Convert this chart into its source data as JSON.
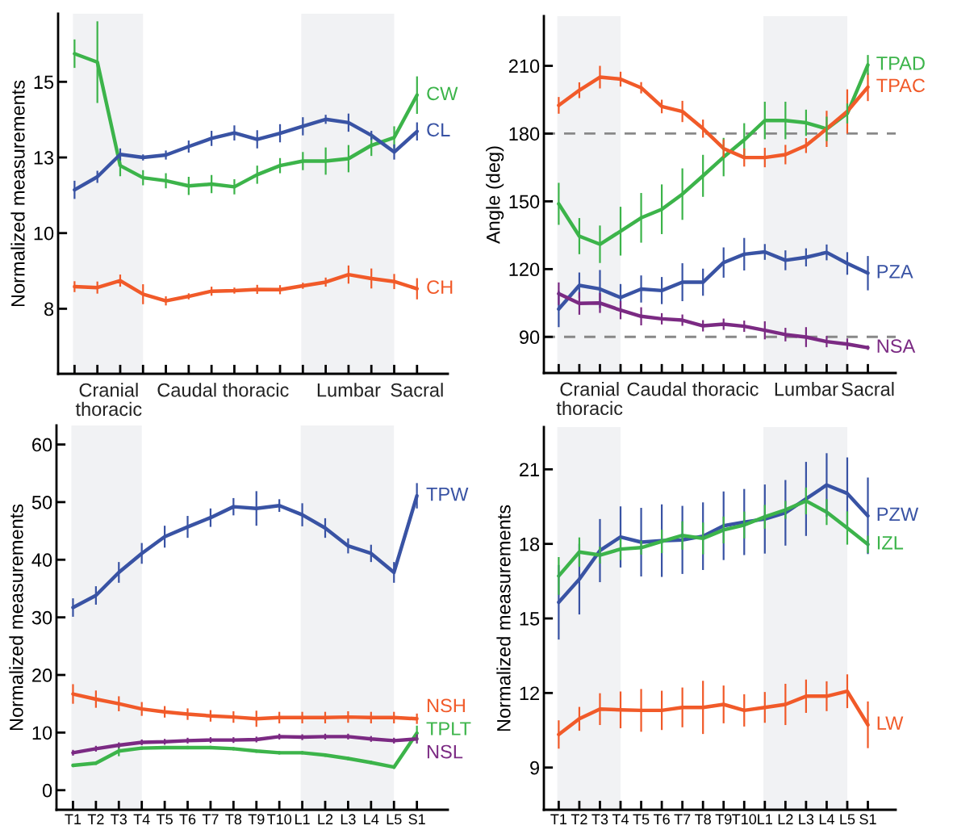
{
  "chart_data": [
    {
      "type": "line",
      "ylabel": "Normalized measurements",
      "tick_labels": "y",
      "categories": [
        "T1",
        "T2",
        "T3",
        "T4",
        "T5",
        "T6",
        "T7",
        "T8",
        "T9",
        "T10",
        "L1",
        "L2",
        "L3",
        "L4",
        "L5",
        "S1"
      ],
      "ylim": [
        5.6,
        17.5
      ],
      "annotations": [
        "Caudal thoracic",
        "Sacral"
      ],
      "yticks": [
        {
          "value": 7.75,
          "label": "8"
        },
        {
          "value": 10.25,
          "label": "10"
        },
        {
          "value": 12.75,
          "label": "13"
        },
        {
          "value": 15.25,
          "label": "15"
        }
      ],
      "bands": [
        {
          "axis": "x",
          "from": "T1",
          "to": "T4",
          "label": "Cranial\nthoracic",
          "color": "#f1f2f4"
        },
        {
          "axis": "x",
          "from": "L1",
          "to": "L5",
          "label": "Lumbar",
          "color": "#f1f2f4"
        }
      ],
      "series": [
        {
          "name": "CW",
          "color": "#3cb44a",
          "values": [
            16.18,
            15.9,
            12.48,
            12.08,
            11.98,
            11.81,
            11.87,
            11.78,
            12.18,
            12.48,
            12.63,
            12.63,
            12.71,
            13.15,
            13.41,
            14.81
          ],
          "errors": [
            0.47,
            1.35,
            0.35,
            0.25,
            0.25,
            0.3,
            0.3,
            0.25,
            0.3,
            0.25,
            0.3,
            0.45,
            0.45,
            0.35,
            0.37,
            0.62
          ]
        },
        {
          "name": "CL",
          "color": "#3953a4",
          "values": [
            11.68,
            12.11,
            12.85,
            12.75,
            12.83,
            13.11,
            13.38,
            13.56,
            13.35,
            13.55,
            13.78,
            14.01,
            13.9,
            13.48,
            12.93,
            13.61
          ],
          "errors": [
            0.3,
            0.2,
            0.2,
            0.1,
            0.15,
            0.2,
            0.25,
            0.25,
            0.3,
            0.3,
            0.3,
            0.15,
            0.3,
            0.15,
            0.25,
            0.3
          ]
        },
        {
          "name": "CH",
          "color": "#f15a29",
          "values": [
            8.48,
            8.45,
            8.68,
            8.23,
            8.01,
            8.16,
            8.33,
            8.35,
            8.39,
            8.38,
            8.51,
            8.63,
            8.88,
            8.75,
            8.65,
            8.41
          ],
          "errors": [
            0.18,
            0.2,
            0.2,
            0.33,
            0.15,
            0.1,
            0.15,
            0.1,
            0.15,
            0.15,
            0.1,
            0.15,
            0.3,
            0.33,
            0.25,
            0.35
          ]
        }
      ]
    },
    {
      "type": "line",
      "ylabel": "Angle (deg)",
      "tick_labels": "y",
      "categories": [
        "T1",
        "T2",
        "T3",
        "T4",
        "T5",
        "T6",
        "T7",
        "T8",
        "T9",
        "T10",
        "L1",
        "L2",
        "L3",
        "L4",
        "L5",
        "S1"
      ],
      "ylim": [
        74,
        232
      ],
      "yticks": [
        90,
        120,
        150,
        180,
        210
      ],
      "annotations": [
        "Caudal thoracic",
        "Sacral"
      ],
      "bands": [
        {
          "axis": "x",
          "from": "T1",
          "to": "T4",
          "label": "Cranial\nthoracic",
          "color": "#f1f2f4"
        },
        {
          "axis": "x",
          "from": "L1",
          "to": "L5",
          "label": "Lumbar",
          "color": "#f1f2f4"
        }
      ],
      "ref_lines": [
        {
          "axis": "y",
          "value": 180,
          "color": "#888888",
          "line_style": "dashed"
        },
        {
          "axis": "y",
          "value": 90,
          "color": "#888888",
          "line_style": "dashed"
        }
      ],
      "series": [
        {
          "name": "TPAD",
          "color": "#3cb44a",
          "values": [
            148.9,
            134.6,
            131.0,
            136.8,
            142.7,
            146.5,
            153.2,
            161.3,
            169.6,
            177.2,
            185.8,
            185.8,
            184.8,
            182.1,
            188.9,
            210.4
          ],
          "errors": [
            9.3,
            8,
            8.3,
            10.8,
            11,
            11,
            11.4,
            9.3,
            8.5,
            7.4,
            8.3,
            8.3,
            5.8,
            5.4,
            4.4,
            4.4
          ]
        },
        {
          "name": "TPAC",
          "color": "#f15a29",
          "values": [
            192.5,
            199.2,
            205.0,
            204.1,
            200.3,
            192.0,
            189.8,
            182.2,
            173.4,
            169.4,
            169.4,
            170.7,
            174.7,
            182.1,
            189.8,
            200.6
          ],
          "errors": [
            3.7,
            3.5,
            5,
            3.3,
            2.5,
            3,
            4.7,
            4,
            4,
            4,
            4.3,
            4.3,
            3.3,
            8,
            9.8,
            6.2
          ]
        },
        {
          "name": "PZA",
          "color": "#3953a4",
          "values": [
            102.3,
            112.8,
            111.2,
            107.4,
            111.2,
            110.5,
            114.2,
            114.2,
            122.9,
            126.6,
            127.6,
            123.9,
            125.2,
            127.4,
            122.5,
            118.2
          ],
          "errors": [
            8,
            5.7,
            8.4,
            6,
            6,
            6,
            8.4,
            6,
            6.7,
            7.2,
            3.5,
            4.4,
            4,
            3.5,
            5,
            7.6
          ]
        },
        {
          "name": "NSA",
          "color": "#7b2a83",
          "values": [
            109.1,
            104.8,
            105.0,
            101.8,
            99.1,
            98.0,
            97.4,
            94.9,
            95.6,
            94.7,
            92.9,
            91.0,
            89.9,
            87.9,
            86.8,
            85.2
          ],
          "errors": [
            5,
            5,
            4.4,
            4,
            4,
            2.5,
            2.5,
            2.5,
            2.5,
            2.5,
            4,
            3,
            4.4,
            2.5,
            2.5,
            1
          ]
        }
      ]
    },
    {
      "type": "line",
      "ylabel": "Normalized measurements",
      "categories": [
        "T1",
        "T2",
        "T3",
        "T4",
        "T5",
        "T6",
        "T7",
        "T8",
        "T9",
        "T10",
        "L1",
        "L2",
        "L3",
        "L4",
        "L5",
        "S1"
      ],
      "ylim": [
        -3.4,
        63.3
      ],
      "yticks": [
        0,
        10,
        20,
        30,
        40,
        50,
        60
      ],
      "bands": [
        {
          "axis": "x",
          "from": "T1",
          "to": "T4",
          "color": "#f1f2f4"
        },
        {
          "axis": "x",
          "from": "L1",
          "to": "L5",
          "color": "#f1f2f4"
        }
      ],
      "series": [
        {
          "name": "TPW",
          "color": "#3953a4",
          "values": [
            31.7,
            33.8,
            37.8,
            41.1,
            44.0,
            45.7,
            47.3,
            49.2,
            48.9,
            49.4,
            47.8,
            45.5,
            42.4,
            41.1,
            37.8,
            51.1
          ],
          "errors": [
            1.6,
            1.6,
            1.8,
            1.8,
            1.9,
            1.9,
            1.6,
            1.5,
            3,
            1.1,
            2,
            1.7,
            1.3,
            1.5,
            1.8,
            2.2
          ]
        },
        {
          "name": "NSH",
          "color": "#f15a29",
          "values": [
            16.7,
            15.8,
            15.0,
            14.1,
            13.6,
            13.2,
            12.9,
            12.7,
            12.4,
            12.6,
            12.6,
            12.6,
            12.7,
            12.6,
            12.6,
            12.4
          ],
          "errors": [
            1.7,
            1.5,
            1.3,
            1.2,
            1,
            1,
            1,
            1,
            1.4,
            1,
            1,
            1,
            1,
            1,
            1,
            0.9
          ]
        },
        {
          "name": "TPLT",
          "color": "#3cb44a",
          "values": [
            4.3,
            4.7,
            6.8,
            7.3,
            7.4,
            7.4,
            7.4,
            7.2,
            6.8,
            6.5,
            6.5,
            6.1,
            5.5,
            4.8,
            4.0,
            9.9
          ],
          "errors": [
            0.3,
            0.3,
            0.9,
            0.3,
            0.3,
            0.3,
            0.3,
            0.3,
            0.3,
            0.3,
            0.3,
            0.3,
            0.3,
            0.3,
            0.3,
            1.3
          ]
        },
        {
          "name": "NSL",
          "color": "#7b2a83",
          "values": [
            6.5,
            7.2,
            7.8,
            8.3,
            8.4,
            8.6,
            8.7,
            8.7,
            8.8,
            9.3,
            9.2,
            9.3,
            9.3,
            8.9,
            8.6,
            8.9
          ],
          "errors": [
            0.5,
            0.5,
            0.5,
            0.5,
            0.5,
            0.5,
            0.5,
            0.5,
            0.5,
            0.5,
            0.5,
            0.5,
            0.5,
            0.5,
            0.5,
            0.8
          ]
        }
      ]
    },
    {
      "type": "line",
      "ylabel": "Normalized measurements",
      "categories": [
        "T1",
        "T2",
        "T3",
        "T4",
        "T5",
        "T6",
        "T7",
        "T8",
        "T9",
        "T10",
        "L1",
        "L2",
        "L3",
        "L4",
        "L5",
        "S1"
      ],
      "ylim": [
        7.3,
        22.7
      ],
      "yticks": [
        9,
        12,
        15,
        18,
        21
      ],
      "bands": [
        {
          "axis": "x",
          "from": "T1",
          "to": "T4",
          "color": "#f1f2f4"
        },
        {
          "axis": "x",
          "from": "L1",
          "to": "L5",
          "color": "#f1f2f4"
        }
      ],
      "series": [
        {
          "name": "PZW",
          "color": "#3953a4",
          "values": [
            15.65,
            16.58,
            17.73,
            18.28,
            18.07,
            18.13,
            18.16,
            18.31,
            18.73,
            18.88,
            19.0,
            19.25,
            19.81,
            20.37,
            20.03,
            19.13
          ],
          "errors": [
            1.5,
            1.42,
            1.27,
            1.23,
            1.38,
            1.46,
            1.37,
            1.36,
            1.38,
            1.33,
            1.39,
            1.32,
            1.49,
            1.28,
            1.45,
            1.54
          ]
        },
        {
          "name": "IZL",
          "color": "#3cb44a",
          "values": [
            16.71,
            17.67,
            17.55,
            17.79,
            17.85,
            18.1,
            18.34,
            18.22,
            18.56,
            18.76,
            19.09,
            19.37,
            19.73,
            19.28,
            18.64,
            17.98
          ],
          "errors": [
            0.76,
            0.59,
            0.34,
            0.44,
            0.28,
            0.47,
            0.57,
            0.64,
            0.54,
            0.54,
            0.48,
            0.36,
            0.54,
            0.52,
            0.67,
            0.35
          ]
        },
        {
          "name": "LW",
          "color": "#f15a29",
          "values": [
            10.33,
            10.96,
            11.35,
            11.32,
            11.3,
            11.3,
            11.42,
            11.42,
            11.54,
            11.3,
            11.42,
            11.54,
            11.87,
            11.87,
            12.07,
            10.72
          ],
          "errors": [
            0.57,
            0.48,
            0.64,
            0.74,
            0.86,
            0.79,
            0.8,
            1.07,
            0.76,
            0.65,
            0.62,
            0.83,
            0.67,
            0.6,
            0.68,
            0.94
          ]
        }
      ]
    }
  ]
}
